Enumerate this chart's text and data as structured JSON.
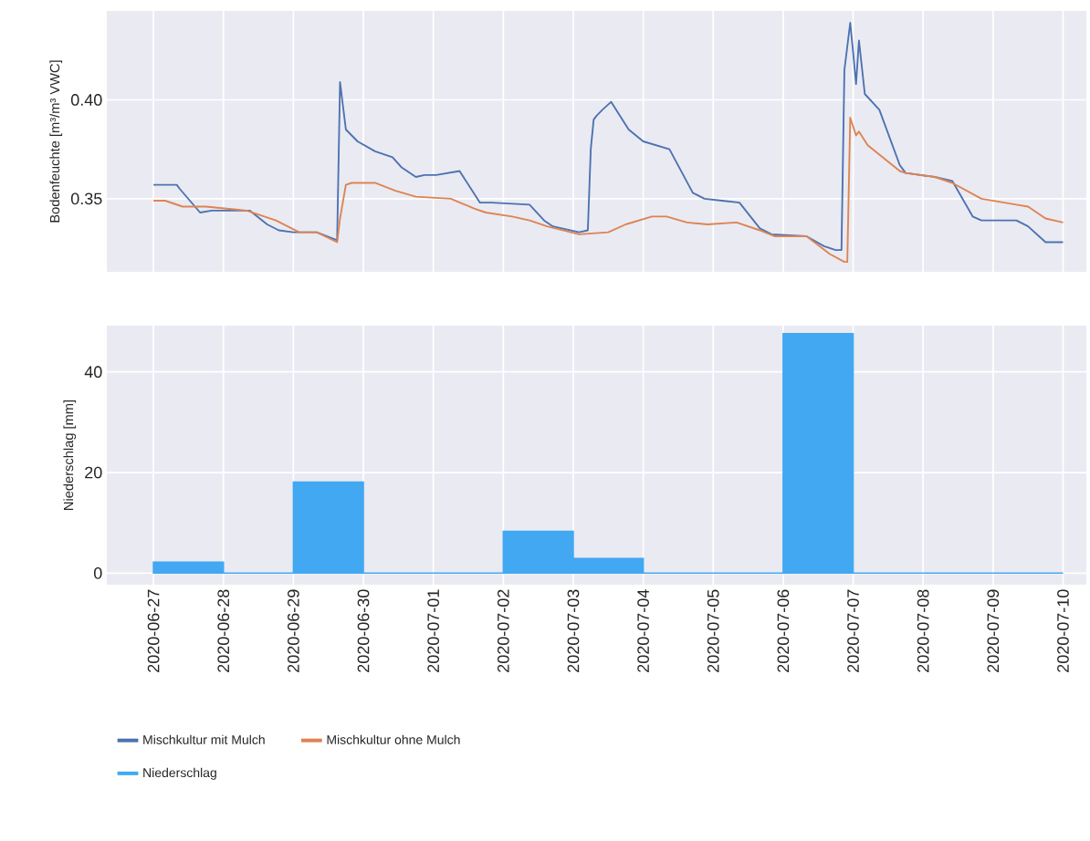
{
  "chart_data": [
    {
      "type": "line",
      "ylabel": "Bodenfeuchte [m³/m³ VWC]",
      "xlim": [
        "2020-06-26T08:00",
        "2020-07-10T08:00"
      ],
      "ylim": [
        0.313,
        0.445
      ],
      "xticks": [
        "2020-06-27",
        "2020-06-28",
        "2020-06-29",
        "2020-06-30",
        "2020-07-01",
        "2020-07-02",
        "2020-07-03",
        "2020-07-04",
        "2020-07-05",
        "2020-07-06",
        "2020-07-07",
        "2020-07-08",
        "2020-07-09",
        "2020-07-10"
      ],
      "yticks": [
        0.35,
        {
          "value": 0.4,
          "label": "0.40"
        }
      ],
      "tick_labels": "y",
      "grid": true,
      "series": [
        {
          "name": "Mischkultur mit Mulch",
          "color": "#4c72b0",
          "x": [
            "2020-06-27T00:00",
            "2020-06-27T08:00",
            "2020-06-27T09:00",
            "2020-06-27T16:00",
            "2020-06-27T20:00",
            "2020-06-28T09:00",
            "2020-06-28T15:00",
            "2020-06-28T19:00",
            "2020-06-29T00:00",
            "2020-06-29T08:00",
            "2020-06-29T15:00",
            "2020-06-29T16:00",
            "2020-06-29T17:00",
            "2020-06-29T18:00",
            "2020-06-29T22:00",
            "2020-06-30T04:00",
            "2020-06-30T10:00",
            "2020-06-30T13:00",
            "2020-06-30T18:00",
            "2020-06-30T21:00",
            "2020-07-01T01:00",
            "2020-07-01T09:00",
            "2020-07-01T16:00",
            "2020-07-01T20:00",
            "2020-07-02T09:00",
            "2020-07-02T14:00",
            "2020-07-02T17:00",
            "2020-07-03T02:00",
            "2020-07-03T05:00",
            "2020-07-03T06:00",
            "2020-07-03T07:00",
            "2020-07-03T08:00",
            "2020-07-03T10:00",
            "2020-07-03T13:00",
            "2020-07-03T19:00",
            "2020-07-04T00:00",
            "2020-07-04T09:00",
            "2020-07-04T17:00",
            "2020-07-04T21:00",
            "2020-07-05T03:00",
            "2020-07-05T09:00",
            "2020-07-05T16:00",
            "2020-07-05T20:00",
            "2020-07-06T08:00",
            "2020-07-06T14:00",
            "2020-07-06T18:00",
            "2020-07-06T20:00",
            "2020-07-06T21:00",
            "2020-07-06T23:00",
            "2020-07-07T00:00",
            "2020-07-07T01:00",
            "2020-07-07T02:00",
            "2020-07-07T04:00",
            "2020-07-07T09:00",
            "2020-07-07T16:00",
            "2020-07-07T18:00",
            "2020-07-08T04:00",
            "2020-07-08T10:00",
            "2020-07-08T17:00",
            "2020-07-08T20:00",
            "2020-07-09T08:00",
            "2020-07-09T12:00",
            "2020-07-09T18:00",
            "2020-07-10T00:00"
          ],
          "values": [
            0.357,
            0.357,
            0.355,
            0.343,
            0.344,
            0.344,
            0.337,
            0.334,
            0.333,
            0.333,
            0.329,
            0.409,
            0.397,
            0.385,
            0.379,
            0.374,
            0.371,
            0.366,
            0.361,
            0.362,
            0.362,
            0.364,
            0.348,
            0.348,
            0.347,
            0.339,
            0.336,
            0.333,
            0.334,
            0.375,
            0.39,
            0.392,
            0.395,
            0.399,
            0.385,
            0.379,
            0.375,
            0.353,
            0.35,
            0.349,
            0.348,
            0.335,
            0.332,
            0.331,
            0.326,
            0.324,
            0.324,
            0.415,
            0.439,
            0.424,
            0.408,
            0.43,
            0.403,
            0.395,
            0.367,
            0.363,
            0.361,
            0.359,
            0.341,
            0.339,
            0.339,
            0.336,
            0.328,
            0.328
          ]
        },
        {
          "name": "Mischkultur ohne Mulch",
          "color": "#dd8452",
          "x": [
            "2020-06-27T00:00",
            "2020-06-27T04:00",
            "2020-06-27T10:00",
            "2020-06-27T18:00",
            "2020-06-28T08:00",
            "2020-06-28T18:00",
            "2020-06-29T02:00",
            "2020-06-29T08:00",
            "2020-06-29T15:00",
            "2020-06-29T16:00",
            "2020-06-29T18:00",
            "2020-06-29T20:00",
            "2020-06-30T04:00",
            "2020-06-30T11:00",
            "2020-06-30T18:00",
            "2020-07-01T06:00",
            "2020-07-01T14:00",
            "2020-07-01T18:00",
            "2020-07-02T03:00",
            "2020-07-02T09:00",
            "2020-07-02T15:00",
            "2020-07-03T02:00",
            "2020-07-03T12:00",
            "2020-07-03T18:00",
            "2020-07-04T03:00",
            "2020-07-04T08:00",
            "2020-07-04T15:00",
            "2020-07-04T22:00",
            "2020-07-05T08:00",
            "2020-07-05T16:00",
            "2020-07-05T21:00",
            "2020-07-06T08:00",
            "2020-07-06T16:00",
            "2020-07-06T21:00",
            "2020-07-06T22:00",
            "2020-07-06T23:00",
            "2020-07-07T01:00",
            "2020-07-07T02:00",
            "2020-07-07T05:00",
            "2020-07-07T16:00",
            "2020-07-07T18:00",
            "2020-07-08T04:00",
            "2020-07-08T10:00",
            "2020-07-08T20:00",
            "2020-07-09T08:00",
            "2020-07-09T12:00",
            "2020-07-09T18:00",
            "2020-07-10T00:00"
          ],
          "values": [
            0.349,
            0.349,
            0.346,
            0.346,
            0.344,
            0.339,
            0.333,
            0.333,
            0.328,
            0.34,
            0.357,
            0.358,
            0.358,
            0.354,
            0.351,
            0.35,
            0.345,
            0.343,
            0.341,
            0.339,
            0.336,
            0.332,
            0.333,
            0.337,
            0.341,
            0.341,
            0.338,
            0.337,
            0.338,
            0.334,
            0.331,
            0.331,
            0.322,
            0.318,
            0.318,
            0.391,
            0.382,
            0.384,
            0.377,
            0.364,
            0.363,
            0.361,
            0.358,
            0.35,
            0.347,
            0.346,
            0.34,
            0.338
          ]
        }
      ]
    },
    {
      "type": "bar",
      "ylabel": "Niederschlag [mm]",
      "xlim": [
        "2020-06-26T08:00",
        "2020-07-10T08:00"
      ],
      "ylim": [
        -2.3,
        49.2
      ],
      "xticks": [
        "2020-06-27",
        "2020-06-28",
        "2020-06-29",
        "2020-06-30",
        "2020-07-01",
        "2020-07-02",
        "2020-07-03",
        "2020-07-04",
        "2020-07-05",
        "2020-07-06",
        "2020-07-07",
        "2020-07-08",
        "2020-07-09",
        "2020-07-10"
      ],
      "yticks": [
        0,
        20,
        40
      ],
      "grid": true,
      "legend": "bottom",
      "x": [
        "2020-06-27T12:00",
        "2020-06-28T12:00",
        "2020-06-29T12:00",
        "2020-06-30T12:00",
        "2020-07-01T12:00",
        "2020-07-02T12:00",
        "2020-07-03T12:00",
        "2020-07-04T12:00",
        "2020-07-05T12:00",
        "2020-07-06T12:00",
        "2020-07-07T12:00",
        "2020-07-08T12:00",
        "2020-07-09T12:00"
      ],
      "series": [
        {
          "name": "Niederschlag",
          "color": "#42a8f2",
          "values": [
            2.2,
            0,
            18.1,
            0,
            0,
            8.3,
            2.9,
            0,
            0,
            47.6,
            0,
            0,
            0
          ]
        }
      ]
    }
  ]
}
